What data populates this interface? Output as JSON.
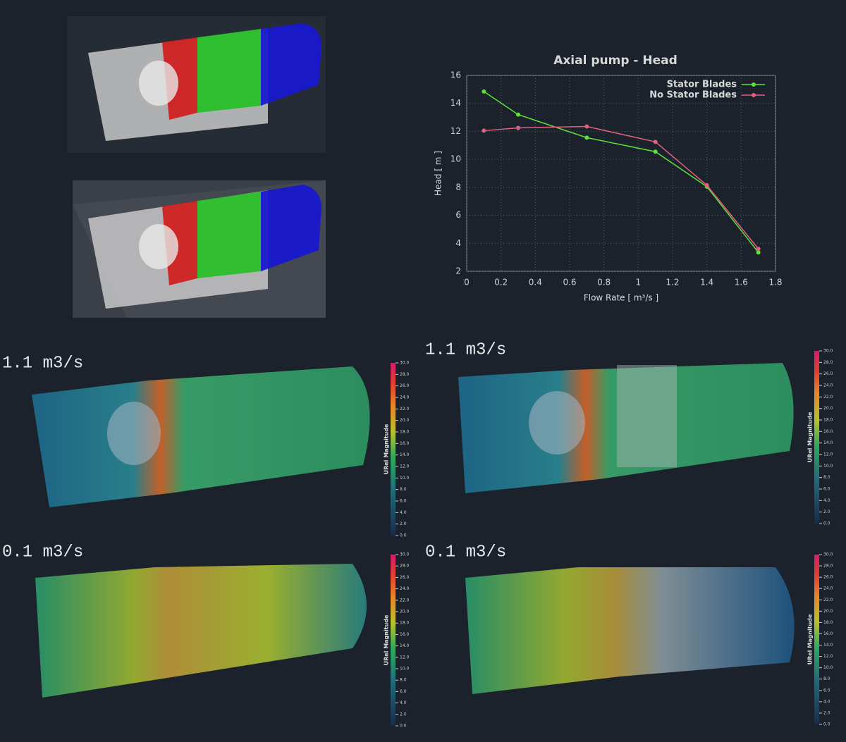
{
  "chart_data": {
    "type": "line",
    "title": "Axial pump - Head",
    "x_label": "Flow Rate [ m³/s ]",
    "y_label": "Head [ m ]",
    "x": [
      0.1,
      0.3,
      0.7,
      1.1,
      1.4,
      1.7
    ],
    "series": [
      {
        "name": "Stator Blades",
        "color": "#5fe03a",
        "values": [
          14.85,
          13.2,
          11.55,
          10.55,
          8.05,
          3.35
        ]
      },
      {
        "name": "No Stator Blades",
        "color": "#e0607e",
        "values": [
          12.05,
          12.25,
          12.35,
          11.25,
          8.15,
          3.6
        ]
      }
    ],
    "xlim": [
      0,
      1.8
    ],
    "xticks": [
      0,
      0.2,
      0.4,
      0.6,
      0.8,
      1,
      1.2,
      1.4,
      1.6,
      1.8
    ],
    "ylim": [
      2,
      16
    ],
    "yticks": [
      2,
      4,
      6,
      8,
      10,
      12,
      14,
      16
    ],
    "grid": true,
    "legend": "top-right"
  },
  "panels": [
    {
      "label": "1.1 m3/s"
    },
    {
      "label": "1.1 m3/s"
    },
    {
      "label": "0.1 m3/s"
    },
    {
      "label": "0.1 m3/s"
    }
  ],
  "colorbar": {
    "title": "URel Magnitude",
    "range": [
      0,
      30
    ],
    "ticks": [
      {
        "value": 0,
        "label": "0.0"
      },
      {
        "value": 2,
        "label": "2.0"
      },
      {
        "value": 4,
        "label": "4.0"
      },
      {
        "value": 6,
        "label": "6.0"
      },
      {
        "value": 8,
        "label": "8.0"
      },
      {
        "value": 10,
        "label": "10.0"
      },
      {
        "value": 12,
        "label": "12.0"
      },
      {
        "value": 14,
        "label": "14.0"
      },
      {
        "value": 16,
        "label": "16.0"
      },
      {
        "value": 18,
        "label": "18.0"
      },
      {
        "value": 20,
        "label": "20.0"
      },
      {
        "value": 22,
        "label": "22.0"
      },
      {
        "value": 24,
        "label": "24.0"
      },
      {
        "value": 26,
        "label": "26.0"
      },
      {
        "value": 28,
        "label": "28.0"
      },
      {
        "value": 30,
        "label": "30.0"
      }
    ]
  }
}
